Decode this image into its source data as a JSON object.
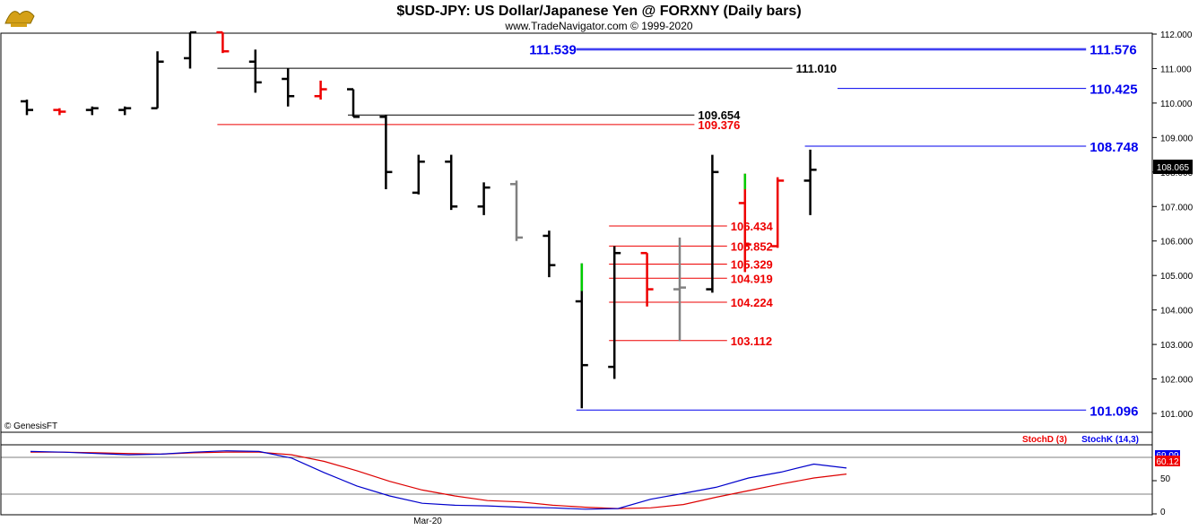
{
  "header": {
    "title": "$USD-JPY:  US Dollar/Japanese Yen @ FORXNY  (Daily bars)",
    "subtitle": "www.TradeNavigator.com © 1999-2020",
    "logo_icon": "genie-lamp-icon",
    "copyright": "© GenesisFT"
  },
  "colors": {
    "up": "#000000",
    "down": "#ee0000",
    "neutral": "#808080",
    "highlight": "#00cc00",
    "blue": "#0000ee",
    "red_level": "#ee0000",
    "black_level": "#000000"
  },
  "chart_data": [
    {
      "type": "ohlc",
      "name": "price",
      "y_ticks": [
        "101.000",
        "102.000",
        "103.000",
        "104.000",
        "105.000",
        "106.000",
        "107.000",
        "108.000",
        "109.000",
        "110.000",
        "111.000",
        "112.000"
      ],
      "ylim": [
        100.7,
        112.05
      ],
      "last_price": "108.065",
      "bars": [
        {
          "o": 110.05,
          "h": 110.1,
          "l": 109.65,
          "c": 109.8,
          "col": "up"
        },
        {
          "o": 109.8,
          "h": 109.85,
          "l": 109.65,
          "c": 109.75,
          "col": "down"
        },
        {
          "o": 109.8,
          "h": 109.9,
          "l": 109.65,
          "c": 109.85,
          "col": "up"
        },
        {
          "o": 109.8,
          "h": 109.9,
          "l": 109.65,
          "c": 109.85,
          "col": "up"
        },
        {
          "o": 109.85,
          "h": 111.5,
          "l": 109.85,
          "c": 111.2,
          "col": "up"
        },
        {
          "o": 111.3,
          "h": 112.05,
          "l": 111.0,
          "c": 112.05,
          "col": "up"
        },
        {
          "o": 112.05,
          "h": 112.05,
          "l": 111.45,
          "c": 111.5,
          "col": "down"
        },
        {
          "o": 111.2,
          "h": 111.55,
          "l": 110.3,
          "c": 110.6,
          "col": "up"
        },
        {
          "o": 110.7,
          "h": 111.0,
          "l": 109.9,
          "c": 110.2,
          "col": "up"
        },
        {
          "o": 110.2,
          "h": 110.65,
          "l": 110.1,
          "c": 110.4,
          "col": "down"
        },
        {
          "o": 110.4,
          "h": 110.4,
          "l": 109.6,
          "c": 109.6,
          "col": "up"
        },
        {
          "o": 109.6,
          "h": 109.65,
          "l": 107.5,
          "c": 108.0,
          "col": "up"
        },
        {
          "o": 107.4,
          "h": 108.5,
          "l": 107.35,
          "c": 108.3,
          "col": "up"
        },
        {
          "o": 108.3,
          "h": 108.5,
          "l": 106.9,
          "c": 107.0,
          "col": "up"
        },
        {
          "o": 107.0,
          "h": 107.7,
          "l": 106.75,
          "c": 107.55,
          "col": "up"
        },
        {
          "o": 107.65,
          "h": 107.75,
          "l": 106.0,
          "c": 106.1,
          "col": "neutral"
        },
        {
          "o": 106.15,
          "h": 106.3,
          "l": 104.95,
          "c": 105.3,
          "col": "up"
        },
        {
          "o": 104.25,
          "h": 105.35,
          "l": 101.15,
          "c": 102.4,
          "col": "up",
          "hl": [
            104.55,
            105.35
          ]
        },
        {
          "o": 102.35,
          "h": 105.85,
          "l": 102.0,
          "c": 105.65,
          "col": "up"
        },
        {
          "o": 105.65,
          "h": 105.65,
          "l": 104.1,
          "c": 104.6,
          "col": "down"
        },
        {
          "o": 104.6,
          "h": 106.1,
          "l": 103.1,
          "c": 104.65,
          "col": "neutral"
        },
        {
          "o": 104.6,
          "h": 108.5,
          "l": 104.5,
          "c": 108.0,
          "col": "up"
        },
        {
          "o": 107.1,
          "h": 107.95,
          "l": 105.1,
          "c": 105.9,
          "col": "down",
          "hl": [
            107.5,
            107.95
          ]
        },
        {
          "o": 105.85,
          "h": 107.85,
          "l": 105.8,
          "c": 107.75,
          "col": "down"
        },
        {
          "o": 107.75,
          "h": 108.65,
          "l": 106.75,
          "c": 108.065,
          "col": "up"
        }
      ],
      "levels": [
        {
          "value": "111.576",
          "color": "blue",
          "from": 17,
          "to": 33
        },
        {
          "value": "111.539",
          "color": "blue",
          "from": 17,
          "to": 33,
          "label_left": true
        },
        {
          "value": "111.010",
          "color": "black_level",
          "from": 6,
          "to": 24
        },
        {
          "value": "110.425",
          "color": "blue",
          "from": 25,
          "to": 33
        },
        {
          "value": "109.654",
          "color": "black_level",
          "from": 10,
          "to": 21
        },
        {
          "value": "109.376",
          "color": "red_level",
          "from": 6,
          "to": 21
        },
        {
          "value": "108.748",
          "color": "blue",
          "from": 24,
          "to": 33
        },
        {
          "value": "106.434",
          "color": "red_level",
          "from": 18,
          "to": 22
        },
        {
          "value": "105.852",
          "color": "red_level",
          "from": 18,
          "to": 22
        },
        {
          "value": "105.329",
          "color": "red_level",
          "from": 18,
          "to": 22
        },
        {
          "value": "104.919",
          "color": "red_level",
          "from": 18,
          "to": 22
        },
        {
          "value": "104.224",
          "color": "red_level",
          "from": 18,
          "to": 22
        },
        {
          "value": "103.112",
          "color": "red_level",
          "from": 18,
          "to": 22
        },
        {
          "value": "101.096",
          "color": "blue",
          "from": 17,
          "to": 33
        }
      ]
    },
    {
      "type": "line",
      "name": "stochastic",
      "x_label": "Mar-20",
      "y_ticks": [
        "0",
        "50"
      ],
      "ylim": [
        0,
        100
      ],
      "legend": [
        "StochD (3)",
        "StochK (14,3)"
      ],
      "last_values": [
        "69.09",
        "60.12"
      ],
      "series": [
        {
          "name": "StochD (3)",
          "color": "red",
          "values": [
            93,
            93,
            92,
            91,
            90,
            92,
            93,
            93,
            89,
            79,
            65,
            49,
            36,
            27,
            20,
            18,
            13,
            10,
            8,
            9,
            14,
            25,
            35,
            45,
            54,
            60
          ]
        },
        {
          "name": "StochK (14,3)",
          "color": "blue",
          "values": [
            94,
            93,
            91,
            89,
            90,
            93,
            95,
            94,
            84,
            62,
            42,
            27,
            16,
            13,
            12,
            10,
            9,
            7,
            8,
            22,
            31,
            40,
            54,
            63,
            75,
            69
          ]
        }
      ]
    }
  ]
}
